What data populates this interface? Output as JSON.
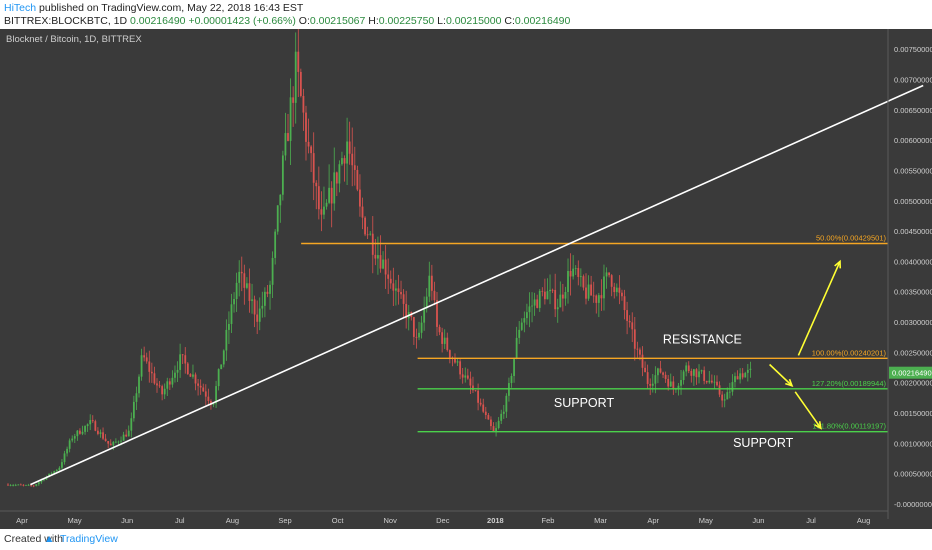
{
  "header": {
    "author": "HiTech",
    "published": " published on TradingView.com, May 22, 2018 16:43 EST",
    "symbol_line_prefix": "BITTREX:BLOCKBTC, 1D ",
    "last": "0.00216490",
    "change": "+0.00001423 (+0.66%)",
    "o_label": " O:",
    "o": "0.00215067",
    "h_label": " H:",
    "h": "0.00225750",
    "l_label": " L:",
    "l": "0.00215000",
    "c_label": " C:",
    "c": "0.00216490"
  },
  "footer": {
    "created_with": "Created with",
    "brand": "TradingView"
  },
  "colors": {
    "background": "#3a3a3a",
    "up": "#4caf50",
    "down": "#d9534f",
    "orange": "#f5a623",
    "green": "#4bd14b",
    "yellow": "#ffff33",
    "white": "#ffffff",
    "axis_text": "#cfcfcf"
  },
  "chart_data": {
    "type": "candlestick",
    "title": "Blocknet / Bitcoin, 1D, BITTREX",
    "x_ticks": [
      "Apr",
      "May",
      "Jun",
      "Jul",
      "Aug",
      "Sep",
      "Oct",
      "Nov",
      "Dec",
      "2018",
      "Feb",
      "Mar",
      "Apr",
      "May",
      "Jun",
      "Jul",
      "Aug"
    ],
    "y_ticks": [
      "0.00750000",
      "0.00700000",
      "0.00650000",
      "0.00600000",
      "0.00550000",
      "0.00500000",
      "0.00450000",
      "0.00400000",
      "0.00350000",
      "0.00300000",
      "0.00250000",
      "0.00200000",
      "0.00150000",
      "0.00100000",
      "0.00050000",
      "-0.00000000"
    ],
    "ylim": [
      0.0,
      0.0077
    ],
    "current_price_label": "0.00216490",
    "price_path": [
      [
        0,
        0.00032
      ],
      [
        0.04,
        0.0003
      ],
      [
        0.08,
        0.0006
      ],
      [
        0.1,
        0.0011
      ],
      [
        0.13,
        0.00135
      ],
      [
        0.16,
        0.00095
      ],
      [
        0.19,
        0.0012
      ],
      [
        0.21,
        0.00245
      ],
      [
        0.24,
        0.0018
      ],
      [
        0.27,
        0.0024
      ],
      [
        0.3,
        0.00195
      ],
      [
        0.32,
        0.00165
      ],
      [
        0.34,
        0.0027
      ],
      [
        0.36,
        0.0038
      ],
      [
        0.39,
        0.0031
      ],
      [
        0.41,
        0.0036
      ],
      [
        0.43,
        0.0056
      ],
      [
        0.45,
        0.0072
      ],
      [
        0.47,
        0.0058
      ],
      [
        0.49,
        0.0046
      ],
      [
        0.51,
        0.0053
      ],
      [
        0.53,
        0.006
      ],
      [
        0.55,
        0.0048
      ],
      [
        0.57,
        0.0043
      ],
      [
        0.59,
        0.0039
      ],
      [
        0.61,
        0.0034
      ],
      [
        0.63,
        0.003
      ],
      [
        0.64,
        0.0026
      ],
      [
        0.66,
        0.0038
      ],
      [
        0.67,
        0.0029
      ],
      [
        0.69,
        0.0025
      ],
      [
        0.71,
        0.00215
      ],
      [
        0.73,
        0.0018
      ],
      [
        0.75,
        0.00135
      ],
      [
        0.76,
        0.00115
      ],
      [
        0.78,
        0.00175
      ],
      [
        0.8,
        0.003
      ],
      [
        0.82,
        0.0033
      ],
      [
        0.84,
        0.0035
      ],
      [
        0.86,
        0.0033
      ],
      [
        0.88,
        0.0039
      ],
      [
        0.9,
        0.0035
      ],
      [
        0.92,
        0.0034
      ],
      [
        0.94,
        0.0038
      ],
      [
        0.96,
        0.0033
      ],
      [
        0.98,
        0.0026
      ],
      [
        1.0,
        0.002
      ],
      [
        1.02,
        0.0022
      ],
      [
        1.04,
        0.0019
      ],
      [
        1.06,
        0.00225
      ],
      [
        1.08,
        0.00215
      ],
      [
        1.1,
        0.002
      ],
      [
        1.12,
        0.0017
      ],
      [
        1.14,
        0.00215
      ],
      [
        1.16,
        0.00216
      ]
    ],
    "levels": [
      {
        "label": "50.00%(0.00429501)",
        "value": 0.00429501,
        "color": "#f5a623",
        "x_start": 0.458
      },
      {
        "label": "100.00%(0.00240201)",
        "value": 0.00240201,
        "color": "#f5a623",
        "x_start": 0.64
      },
      {
        "label": "127.20%(0.00189944)",
        "value": 0.00189944,
        "color": "#4bd14b",
        "x_start": 0.64
      },
      {
        "label": "161.80%(0.00119197)",
        "value": 0.00119197,
        "color": "#4bd14b",
        "x_start": 0.64
      }
    ],
    "trendline": {
      "from": [
        0.035,
        0.00032
      ],
      "to": [
        1.43,
        0.0069
      ]
    },
    "annotations": [
      {
        "text": "RESISTANCE",
        "x": 1.085,
        "y": 0.00265
      },
      {
        "text": "SUPPORT",
        "x": 0.9,
        "y": 0.0016
      },
      {
        "text": "SUPPORT",
        "x": 1.18,
        "y": 0.00094
      }
    ],
    "arrows": [
      {
        "from": [
          1.235,
          0.00245
        ],
        "to": [
          1.3,
          0.004
        ]
      },
      {
        "from": [
          1.19,
          0.0023
        ],
        "to": [
          1.225,
          0.00195
        ]
      },
      {
        "from": [
          1.23,
          0.00185
        ],
        "to": [
          1.27,
          0.00125
        ]
      }
    ]
  }
}
